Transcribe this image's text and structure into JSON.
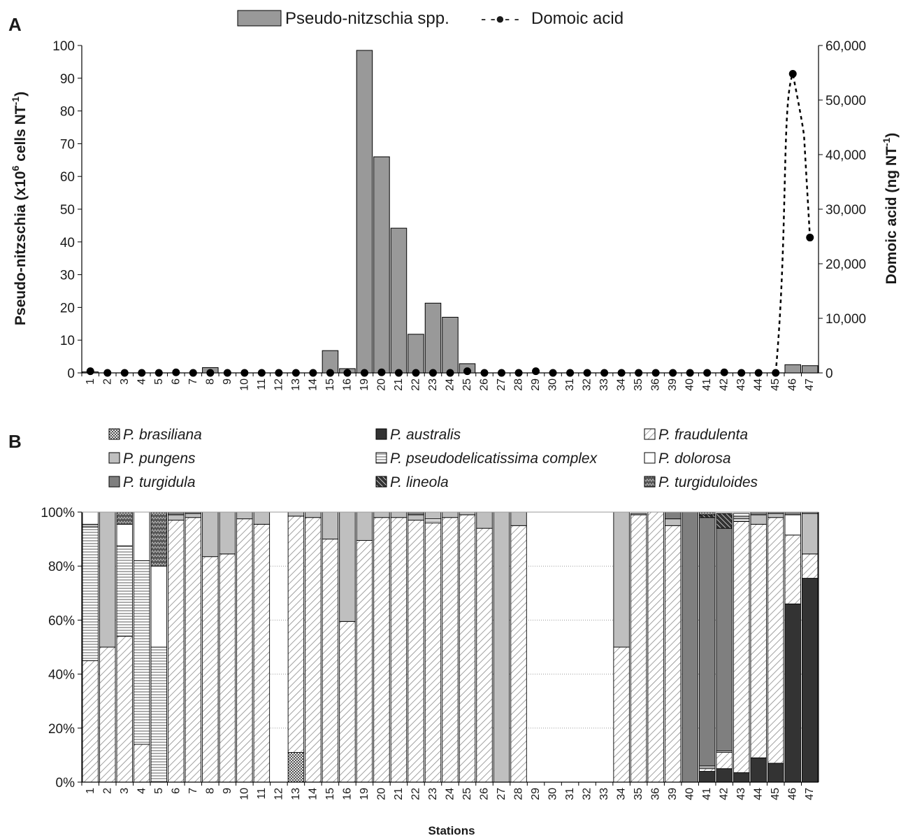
{
  "panel_a_letter": "A",
  "panel_b_letter": "B",
  "colors": {
    "bar_fill": "#999999",
    "dark": "#333333",
    "turgidula": "#7f7f7f",
    "pungens": "#bfbfbf"
  },
  "chart_data": [
    {
      "type": "bar",
      "panel": "A",
      "categories": [
        "1",
        "2",
        "3",
        "4",
        "5",
        "6",
        "7",
        "8",
        "9",
        "10",
        "11",
        "12",
        "13",
        "14",
        "15",
        "16",
        "19",
        "20",
        "21",
        "22",
        "23",
        "24",
        "25",
        "26",
        "27",
        "28",
        "29",
        "30",
        "31",
        "32",
        "33",
        "34",
        "35",
        "36",
        "39",
        "40",
        "41",
        "42",
        "43",
        "44",
        "45",
        "46",
        "47"
      ],
      "series": [
        {
          "name": "Pseudo-nitzschia spp.",
          "type": "bar",
          "axis": "left",
          "values": [
            0.3,
            0,
            0,
            0,
            0,
            0,
            0,
            1.6,
            0,
            0,
            0,
            0,
            0,
            0,
            6.8,
            1.3,
            98.5,
            66,
            44.2,
            11.8,
            21.3,
            17,
            2.8,
            0,
            0,
            0,
            0,
            0,
            0,
            0,
            0,
            0,
            0,
            0,
            0,
            0,
            0,
            0,
            0,
            0,
            0,
            2.5,
            2.2
          ]
        },
        {
          "name": "Domoic acid",
          "type": "line",
          "axis": "right",
          "values": [
            300,
            0,
            0,
            0,
            0,
            100,
            0,
            0,
            0,
            0,
            0,
            0,
            0,
            0,
            0,
            0,
            0,
            100,
            0,
            0,
            0,
            0,
            300,
            0,
            0,
            0,
            300,
            0,
            0,
            0,
            0,
            0,
            0,
            0,
            0,
            0,
            0,
            100,
            0,
            0,
            0,
            54800,
            24800
          ]
        }
      ],
      "legend": [
        "Pseudo-nitzschia spp.",
        "Domoic acid"
      ],
      "legend_line_symbol": "- -●- -",
      "ylabel_left": "Pseudo-nitzschia (x10",
      "ylabel_left_sup": "6",
      "ylabel_left_tail": " cells NT",
      "ylabel_left_sup2": "-1",
      "ylabel_left_close": ")",
      "ylabel_right": "Domoic acid (ng NT",
      "ylabel_right_sup": "-1",
      "ylabel_right_close": ")",
      "ylim_left": [
        0,
        100
      ],
      "yticks_left": [
        "0",
        "10",
        "20",
        "30",
        "40",
        "50",
        "60",
        "70",
        "80",
        "90",
        "100"
      ],
      "ylim_right": [
        0,
        60000
      ],
      "yticks_right": [
        "0",
        "10,000",
        "20,000",
        "30,000",
        "40,000",
        "50,000",
        "60,000"
      ],
      "legend_placement": "top"
    },
    {
      "type": "bar",
      "panel": "B",
      "stacked": true,
      "percent": true,
      "categories": [
        "1",
        "2",
        "3",
        "4",
        "5",
        "6",
        "7",
        "8",
        "9",
        "10",
        "11",
        "12",
        "13",
        "14",
        "15",
        "16",
        "19",
        "20",
        "21",
        "22",
        "23",
        "24",
        "25",
        "26",
        "27",
        "28",
        "29",
        "30",
        "31",
        "32",
        "33",
        "34",
        "35",
        "36",
        "39",
        "40",
        "41",
        "42",
        "43",
        "44",
        "45",
        "46",
        "47"
      ],
      "series": [
        {
          "name": "P. brasiliana",
          "key": "brasiliana",
          "values": [
            0,
            0,
            0,
            0,
            0,
            0,
            0,
            0,
            0,
            0,
            0,
            0,
            11,
            0,
            0,
            0,
            0,
            0,
            0,
            0,
            0,
            0,
            0,
            0,
            0,
            0,
            0,
            0,
            0,
            0,
            0,
            0,
            0,
            0,
            0,
            0,
            0,
            0,
            0,
            0,
            0,
            0,
            0
          ]
        },
        {
          "name": "P. australis",
          "key": "australis",
          "values": [
            0,
            0,
            0,
            0,
            0,
            0,
            0,
            0,
            0,
            0,
            0,
            0,
            0,
            0,
            0,
            0,
            0,
            0,
            0,
            0,
            0,
            0,
            0,
            0,
            0,
            0,
            0,
            0,
            0,
            0,
            0,
            0,
            0,
            0,
            0,
            0,
            4,
            5,
            3.5,
            9,
            7,
            66,
            75.5
          ]
        },
        {
          "name": "P. fraudulenta",
          "key": "fraudulenta",
          "values": [
            45,
            50,
            54,
            14,
            0,
            97,
            98,
            83.5,
            84.5,
            97.5,
            95.5,
            0,
            87.5,
            98,
            90,
            59.5,
            89.5,
            98,
            98,
            97,
            96,
            98,
            99,
            94,
            0,
            95,
            0,
            0,
            0,
            0,
            0,
            50,
            99,
            100,
            95,
            0,
            1,
            6,
            93,
            86.5,
            91,
            25.5,
            9
          ]
        },
        {
          "name": "P. pseudodelicatissima complex",
          "key": "pseudodelicatissima",
          "values": [
            49.5,
            0,
            33.5,
            68,
            50,
            0,
            0,
            0,
            0,
            0,
            0,
            0,
            0,
            0,
            0,
            0,
            0,
            0,
            0,
            0,
            1.5,
            0,
            0,
            0,
            0,
            0,
            0,
            0,
            0,
            0,
            0,
            0,
            0,
            0,
            0,
            0,
            1,
            0.5,
            1,
            0,
            0,
            0,
            0
          ]
        },
        {
          "name": "P. pungens",
          "key": "pungens",
          "values": [
            1,
            50,
            0,
            0,
            0,
            2,
            1.5,
            16.5,
            15.5,
            2.5,
            4.5,
            0,
            1.5,
            2,
            10,
            40.5,
            10.5,
            2,
            2,
            2,
            2.5,
            2,
            1,
            6,
            100,
            5,
            0,
            0,
            0,
            0,
            0,
            50,
            0.5,
            0,
            2.5,
            0,
            0,
            0,
            1,
            3.5,
            1.5,
            0,
            15
          ]
        },
        {
          "name": "P. dolorosa",
          "key": "dolorosa",
          "values": [
            4.5,
            0,
            8,
            18,
            30,
            0,
            0,
            0,
            0,
            0,
            0,
            0,
            0,
            0,
            0,
            0,
            0,
            0,
            0,
            0,
            0,
            0,
            0,
            0,
            0,
            0,
            0,
            0,
            0,
            0,
            0,
            0,
            0,
            0,
            0,
            0,
            0,
            0,
            1,
            0,
            0,
            7.5,
            0
          ]
        },
        {
          "name": "P. turgidula",
          "key": "turgidula",
          "values": [
            0,
            0,
            0,
            0,
            0,
            1,
            0.5,
            0,
            0,
            0,
            0,
            0,
            0,
            0,
            0,
            0,
            0,
            0,
            0,
            1,
            0,
            0,
            0,
            0,
            0,
            0,
            0,
            0,
            0,
            0,
            0,
            0,
            0,
            0,
            2.5,
            100,
            92,
            82.5,
            0,
            1,
            0.5,
            1,
            0.5
          ]
        },
        {
          "name": "P. lineola",
          "key": "lineola",
          "values": [
            0,
            0,
            0,
            0,
            0,
            0,
            0,
            0,
            0,
            0,
            0,
            0,
            0,
            0,
            0,
            0,
            0,
            0,
            0,
            0,
            0,
            0,
            0,
            0,
            0,
            0,
            0,
            0,
            0,
            0,
            0,
            0,
            0,
            0,
            0,
            0,
            1,
            5.5,
            0,
            0,
            0,
            0,
            0
          ]
        },
        {
          "name": "P. turgiduloides",
          "key": "turgiduloides",
          "values": [
            0,
            0,
            4.5,
            0,
            20,
            0,
            0,
            0,
            0,
            0,
            0,
            0,
            0,
            0,
            0,
            0,
            0,
            0,
            0,
            0,
            0,
            0,
            0,
            0,
            0,
            0,
            0,
            0,
            0,
            0,
            0,
            0,
            0,
            0,
            0,
            0,
            1,
            0,
            0,
            0,
            0,
            0,
            0
          ]
        }
      ],
      "legend": [
        "P. brasiliana",
        "P. australis",
        "P. fraudulenta",
        "P. pungens",
        "P. pseudodelicatissima complex",
        "P. dolorosa",
        "P. turgidula",
        "P. lineola",
        "P. turgiduloides"
      ],
      "yticks": [
        "0%",
        "20%",
        "40%",
        "60%",
        "80%",
        "100%"
      ],
      "ylim": [
        0,
        100
      ],
      "xlabel": "Stations",
      "grid": true,
      "legend_placement": "top"
    }
  ]
}
